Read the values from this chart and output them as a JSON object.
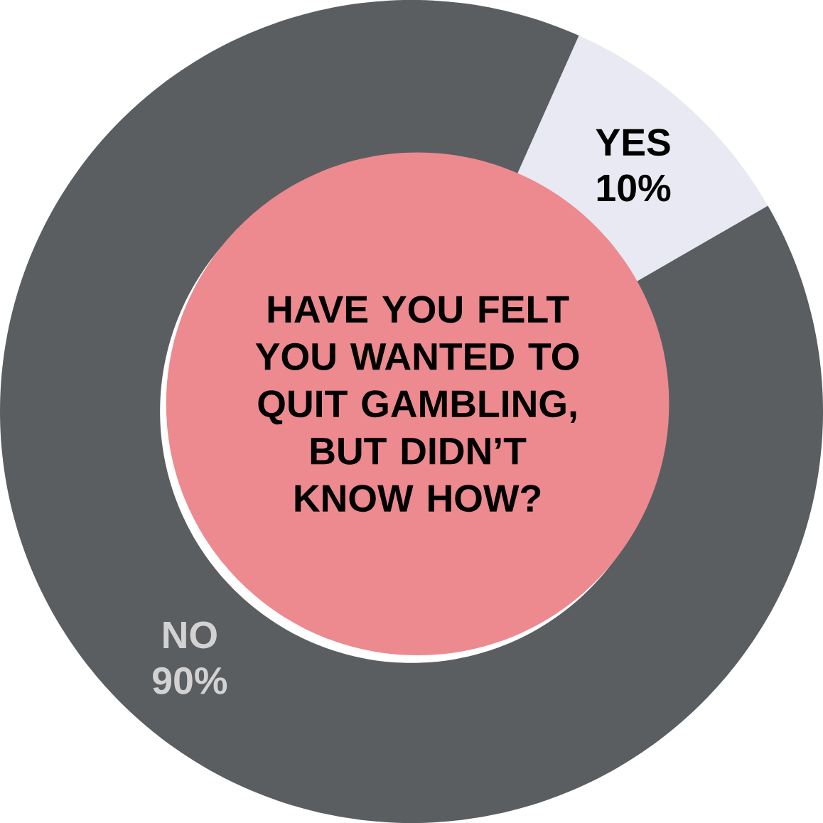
{
  "chart_data": {
    "type": "donut",
    "title": "HAVE YOU FELT YOU WANTED TO QUIT GAMBLING, BUT DIDN’T KNOW HOW?",
    "categories": [
      "YES",
      "NO"
    ],
    "values": [
      10,
      90
    ],
    "value_labels": [
      "10%",
      "90%"
    ],
    "colors": [
      "#e9e9f3",
      "#5b5e61"
    ]
  }
}
